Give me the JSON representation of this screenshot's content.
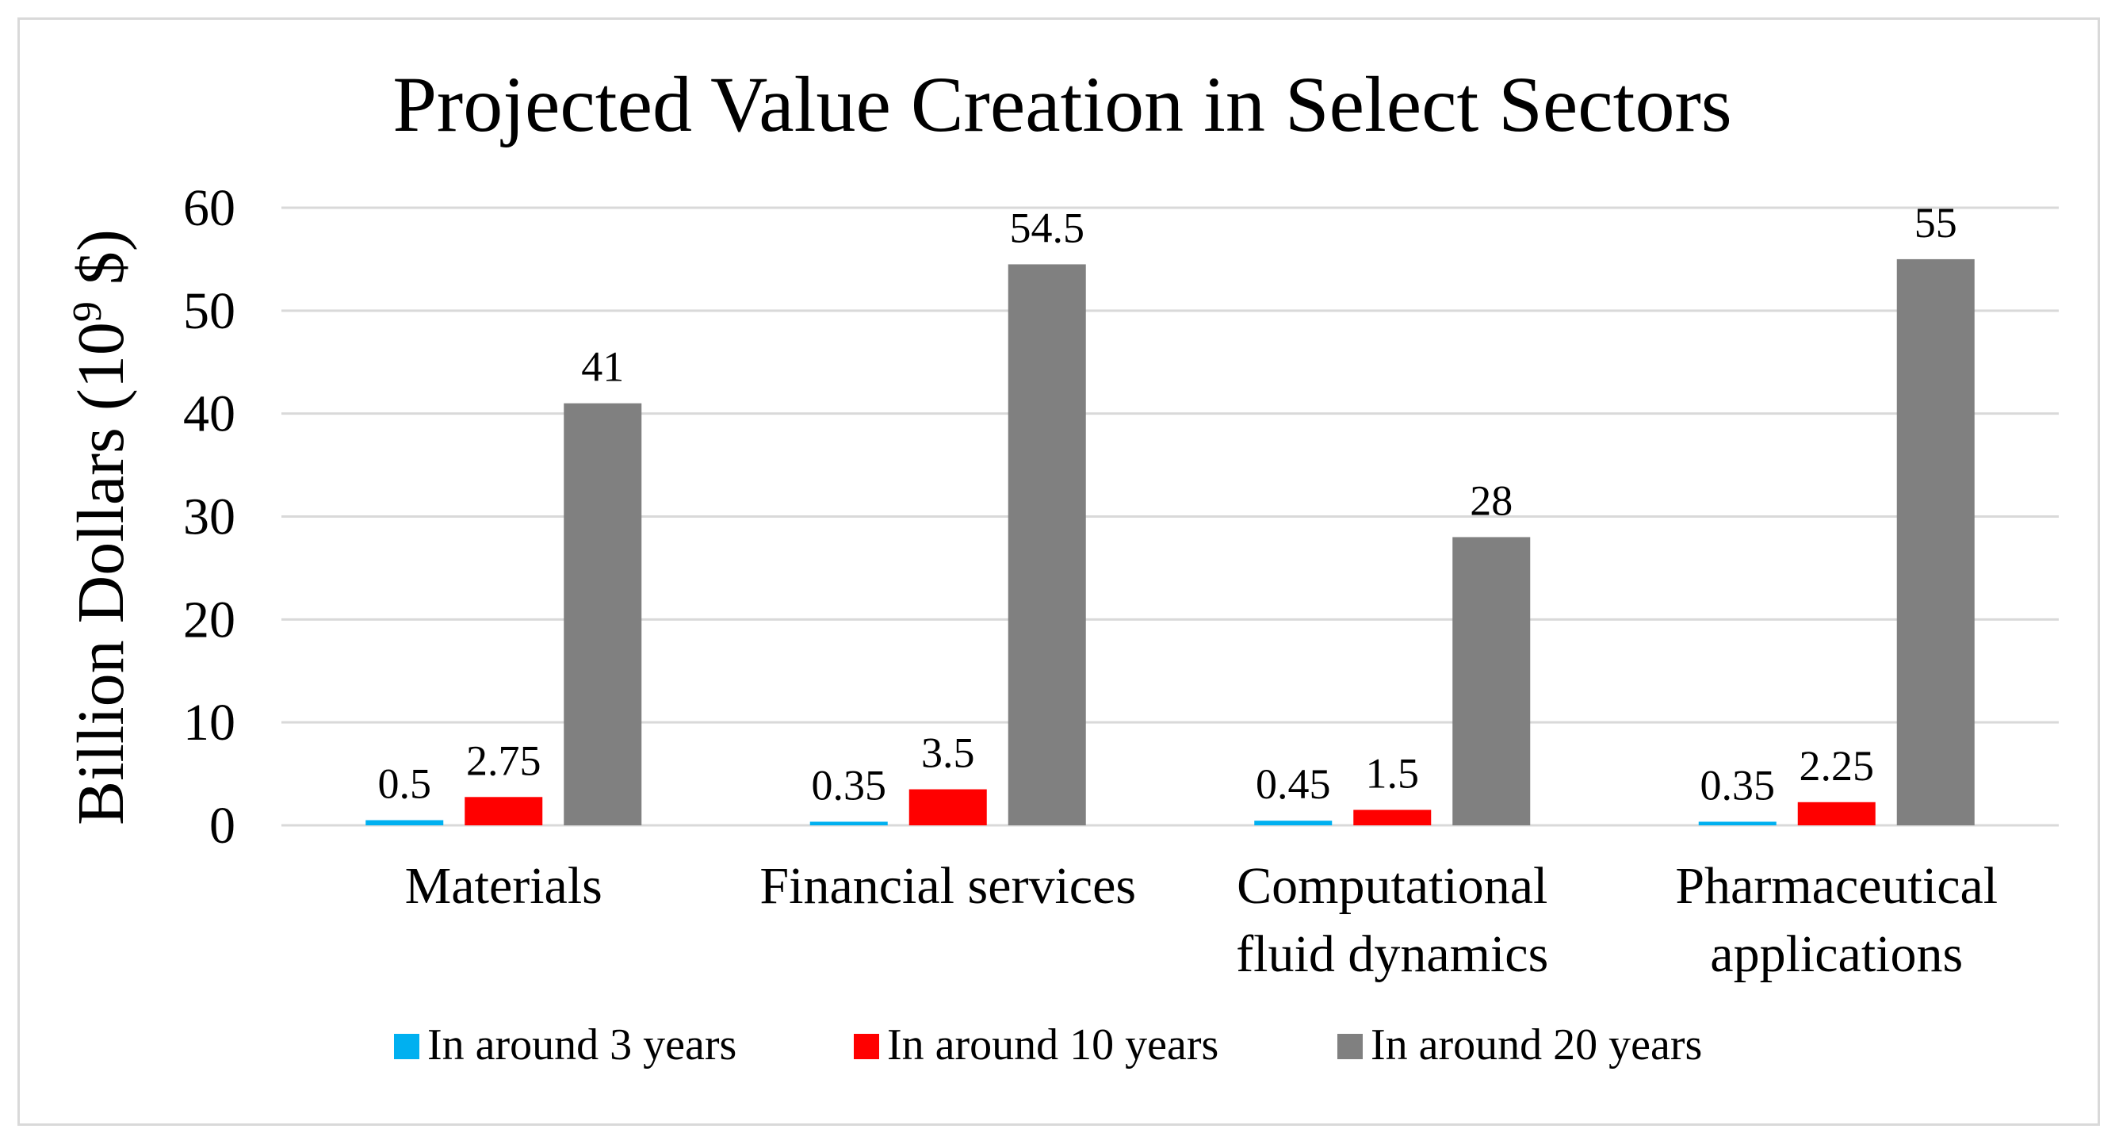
{
  "chart_data": {
    "type": "bar",
    "title": "Projected Value Creation in Select Sectors",
    "ylabel": "Billion Dollars (10",
    "ylabel_superscript": "9",
    "ylabel_suffix": " $)",
    "xlabel": "",
    "ylim": [
      0,
      60
    ],
    "yticks": [
      0,
      10,
      20,
      30,
      40,
      50,
      60
    ],
    "grid": true,
    "legend_position": "bottom",
    "categories": [
      [
        "Materials"
      ],
      [
        "Financial services"
      ],
      [
        "Computational",
        "fluid dynamics"
      ],
      [
        "Pharmaceutical",
        "applications"
      ]
    ],
    "series": [
      {
        "name": "In around 3 years",
        "color": "#00B0F0",
        "values": [
          0.5,
          0.35,
          0.45,
          0.35
        ],
        "labels": [
          "0.5",
          "0.35",
          "0.45",
          "0.35"
        ]
      },
      {
        "name": "In around 10 years",
        "color": "#FF0000",
        "values": [
          2.75,
          3.5,
          1.5,
          2.25
        ],
        "labels": [
          "2.75",
          "3.5",
          "1.5",
          "2.25"
        ]
      },
      {
        "name": "In around 20 years",
        "color": "#808080",
        "values": [
          41,
          54.5,
          28,
          55
        ],
        "labels": [
          "41",
          "54.5",
          "28",
          "55"
        ]
      }
    ]
  }
}
